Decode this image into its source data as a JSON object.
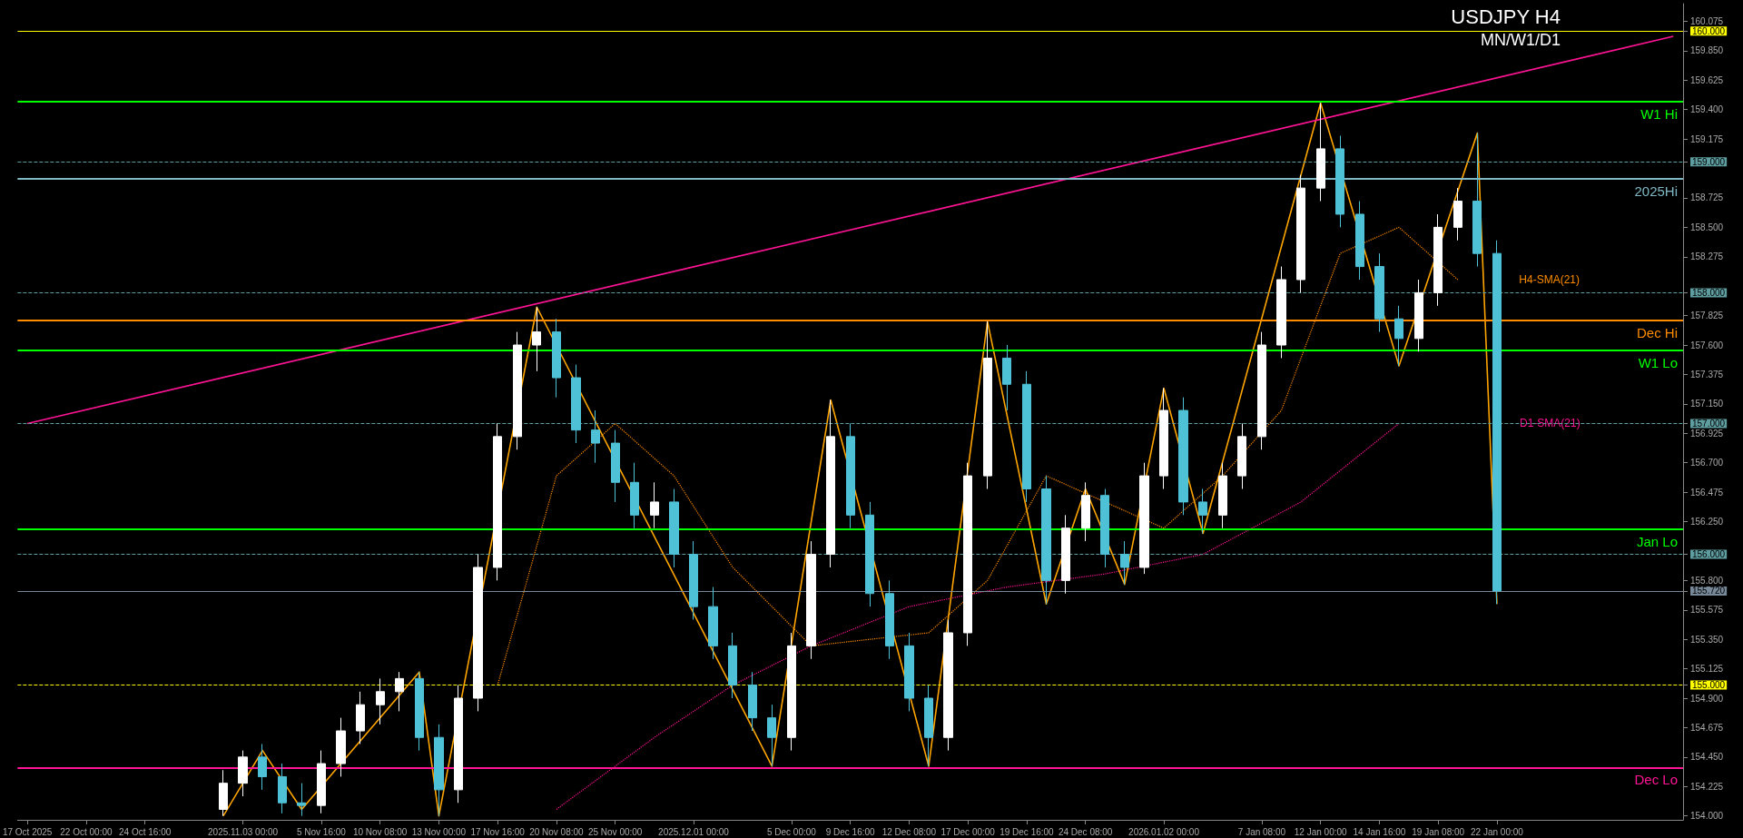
{
  "chart_data": {
    "type": "candlestick",
    "title": "USDJPY H4",
    "subtitle": "MN/W1/D1",
    "categories": [
      "17 Oct 2025",
      null,
      null,
      "22 Oct 00:00",
      null,
      null,
      "24 Oct 16:00",
      null,
      null,
      null,
      null,
      "2025.11.03 00:00",
      null,
      null,
      null,
      "5 Nov 16:00",
      null,
      null,
      "10 Nov 08:00",
      null,
      null,
      "13 Nov 00:00",
      null,
      null,
      "17 Nov 16:00",
      null,
      null,
      "20 Nov 08:00",
      null,
      null,
      "25 Nov 00:00",
      null,
      null,
      null,
      "2025.12.01 00:00",
      null,
      null,
      null,
      null,
      "5 Dec 00:00",
      null,
      null,
      "9 Dec 16:00",
      null,
      null,
      "12 Dec 08:00",
      null,
      null,
      "17 Dec 00:00",
      null,
      null,
      "19 Dec 16:00",
      null,
      null,
      "24 Dec 08:00",
      null,
      null,
      null,
      "2026.01.02 00:00",
      null,
      null,
      null,
      null,
      "7 Jan 08:00",
      null,
      null,
      "12 Jan 00:00",
      null,
      null,
      "14 Jan 16:00",
      null,
      null,
      "19 Jan 08:00",
      null,
      null,
      "22 Jan 00:00",
      null,
      null,
      null,
      null,
      null,
      null,
      null,
      null,
      null
    ],
    "ylim": [
      153.97,
      160.21
    ],
    "yticks": [
      {
        "value": 154.0,
        "label": "154.000"
      },
      {
        "value": 154.225,
        "label": "154.225"
      },
      {
        "value": 154.45,
        "label": "154.450"
      },
      {
        "value": 154.675,
        "label": "154.675"
      },
      {
        "value": 154.9,
        "label": "154.900"
      },
      {
        "value": 155.0,
        "label": "155.000"
      },
      {
        "value": 155.125,
        "label": "155.125"
      },
      {
        "value": 155.35,
        "label": "155.350"
      },
      {
        "value": 155.575,
        "label": "155.575"
      },
      {
        "value": 155.72,
        "label": "155.720"
      },
      {
        "value": 155.8,
        "label": "155.800"
      },
      {
        "value": 156.0,
        "label": "156.000"
      },
      {
        "value": 156.25,
        "label": "156.250"
      },
      {
        "value": 156.475,
        "label": "156.475"
      },
      {
        "value": 156.7,
        "label": "156.700"
      },
      {
        "value": 156.925,
        "label": "156.925"
      },
      {
        "value": 157.0,
        "label": "157.000"
      },
      {
        "value": 157.15,
        "label": "157.150"
      },
      {
        "value": 157.375,
        "label": "157.375"
      },
      {
        "value": 157.6,
        "label": "157.600"
      },
      {
        "value": 157.825,
        "label": "157.825"
      },
      {
        "value": 158.0,
        "label": "158.000"
      },
      {
        "value": 158.275,
        "label": "158.275"
      },
      {
        "value": 158.5,
        "label": "158.500"
      },
      {
        "value": 158.725,
        "label": "158.725"
      },
      {
        "value": 159.0,
        "label": "159.000"
      },
      {
        "value": 159.175,
        "label": "159.175"
      },
      {
        "value": 159.4,
        "label": "159.400"
      },
      {
        "value": 159.625,
        "label": "159.625"
      },
      {
        "value": 159.85,
        "label": "159.850"
      },
      {
        "value": 160.0,
        "label": "160.000"
      },
      {
        "value": 160.075,
        "label": "160.075"
      }
    ],
    "grid": false,
    "series": [
      {
        "ohlc": [
          null,
          null,
          null,
          null,
          null,
          null,
          null,
          null,
          null,
          null,
          [
            154.05,
            154.35,
            154.0,
            154.25
          ],
          [
            154.25,
            154.5,
            154.15,
            154.45
          ],
          [
            154.45,
            154.55,
            154.2,
            154.3
          ],
          [
            154.3,
            154.4,
            154.02,
            154.1
          ],
          [
            154.1,
            154.25,
            154.0,
            154.08
          ],
          [
            154.08,
            154.5,
            154.02,
            154.4
          ],
          [
            154.4,
            154.75,
            154.3,
            154.65
          ],
          [
            154.65,
            154.95,
            154.55,
            154.85
          ],
          [
            154.85,
            155.05,
            154.7,
            154.95
          ],
          [
            154.95,
            155.1,
            154.8,
            155.05
          ],
          [
            155.05,
            155.1,
            154.5,
            154.6
          ],
          [
            154.6,
            154.7,
            154.0,
            154.2
          ],
          [
            154.2,
            155.0,
            154.1,
            154.9
          ],
          [
            154.9,
            156.0,
            154.8,
            155.9
          ],
          [
            155.9,
            157.0,
            155.8,
            156.9
          ],
          [
            156.9,
            157.7,
            156.8,
            157.6
          ],
          [
            157.6,
            157.89,
            157.4,
            157.7
          ],
          [
            157.7,
            157.8,
            157.2,
            157.35
          ],
          [
            157.35,
            157.45,
            156.85,
            156.95
          ],
          [
            156.95,
            157.1,
            156.7,
            156.85
          ],
          [
            156.85,
            156.95,
            156.4,
            156.55
          ],
          [
            156.55,
            156.7,
            156.2,
            156.3
          ],
          [
            156.3,
            156.55,
            156.2,
            156.4
          ],
          [
            156.4,
            156.5,
            155.9,
            156.0
          ],
          [
            156.0,
            156.1,
            155.5,
            155.6
          ],
          [
            155.6,
            155.75,
            155.2,
            155.3
          ],
          [
            155.3,
            155.4,
            154.9,
            155.0
          ],
          [
            155.0,
            155.1,
            154.65,
            154.75
          ],
          [
            154.75,
            154.85,
            154.38,
            154.6
          ],
          [
            154.6,
            155.4,
            154.5,
            155.3
          ],
          [
            155.3,
            156.1,
            155.2,
            156.0
          ],
          [
            156.0,
            157.18,
            155.9,
            156.9
          ],
          [
            156.9,
            157.0,
            156.2,
            156.3
          ],
          [
            156.3,
            156.4,
            155.6,
            155.7
          ],
          [
            155.7,
            155.8,
            155.2,
            155.3
          ],
          [
            155.3,
            155.4,
            154.8,
            154.9
          ],
          [
            154.9,
            155.0,
            154.38,
            154.6
          ],
          [
            154.6,
            155.5,
            154.5,
            155.4
          ],
          [
            155.4,
            156.7,
            155.3,
            156.6
          ],
          [
            156.6,
            157.78,
            156.5,
            157.5
          ],
          [
            157.5,
            157.6,
            157.1,
            157.3
          ],
          [
            157.3,
            157.4,
            156.4,
            156.5
          ],
          [
            156.5,
            156.6,
            155.62,
            155.8
          ],
          [
            155.8,
            156.3,
            155.7,
            156.2
          ],
          [
            156.2,
            156.55,
            156.1,
            156.45
          ],
          [
            156.45,
            156.5,
            155.9,
            156.0
          ],
          [
            156.0,
            156.1,
            155.77,
            155.9
          ],
          [
            155.9,
            156.7,
            155.85,
            156.6
          ],
          [
            156.6,
            157.27,
            156.5,
            157.1
          ],
          [
            157.1,
            157.2,
            156.3,
            156.4
          ],
          [
            156.4,
            156.5,
            156.16,
            156.3
          ],
          [
            156.3,
            156.7,
            156.2,
            156.6
          ],
          [
            156.6,
            157.0,
            156.5,
            156.9
          ],
          [
            156.9,
            157.7,
            156.8,
            157.6
          ],
          [
            157.6,
            158.2,
            157.5,
            158.1
          ],
          [
            158.1,
            158.9,
            158.0,
            158.8
          ],
          [
            158.8,
            159.45,
            158.7,
            159.1
          ],
          [
            159.1,
            159.2,
            158.5,
            158.6
          ],
          [
            158.6,
            158.7,
            158.1,
            158.2
          ],
          [
            158.2,
            158.3,
            157.7,
            157.8
          ],
          [
            157.8,
            157.9,
            157.44,
            157.65
          ],
          [
            157.65,
            158.1,
            157.55,
            158.0
          ],
          [
            158.0,
            158.6,
            157.9,
            158.5
          ],
          [
            158.5,
            158.8,
            158.4,
            158.7
          ],
          [
            158.7,
            159.22,
            158.2,
            158.3
          ],
          [
            158.3,
            158.4,
            155.62,
            155.72
          ],
          null,
          null,
          null,
          null,
          null,
          null,
          null,
          null,
          null
        ],
        "colors": [
          null,
          null,
          null,
          null,
          null,
          null,
          null,
          null,
          null,
          null,
          "#ffffff",
          "#ffffff",
          "#4fc1d6",
          "#4fc1d6",
          "#4fc1d6",
          "#ffffff",
          "#ffffff",
          "#ffffff",
          "#ffffff",
          "#ffffff",
          "#4fc1d6",
          "#4fc1d6",
          "#ffffff",
          "#ffffff",
          "#ffffff",
          "#ffffff",
          "#ffffff",
          "#4fc1d6",
          "#4fc1d6",
          "#4fc1d6",
          "#4fc1d6",
          "#4fc1d6",
          "#ffffff",
          "#4fc1d6",
          "#4fc1d6",
          "#4fc1d6",
          "#4fc1d6",
          "#4fc1d6",
          "#4fc1d6",
          "#ffffff",
          "#ffffff",
          "#ffffff",
          "#4fc1d6",
          "#4fc1d6",
          "#4fc1d6",
          "#4fc1d6",
          "#4fc1d6",
          "#ffffff",
          "#ffffff",
          "#ffffff",
          "#4fc1d6",
          "#4fc1d6",
          "#4fc1d6",
          "#ffffff",
          "#ffffff",
          "#4fc1d6",
          "#4fc1d6",
          "#ffffff",
          "#ffffff",
          "#4fc1d6",
          "#4fc1d6",
          "#ffffff",
          "#ffffff",
          "#ffffff",
          "#ffffff",
          "#ffffff",
          "#ffffff",
          "#4fc1d6",
          "#4fc1d6",
          "#4fc1d6",
          "#4fc1d6",
          "#ffffff",
          "#ffffff",
          "#ffffff",
          "#4fc1d6",
          "#4fc1d6",
          null,
          null,
          null,
          null,
          null,
          null,
          null,
          null,
          null
        ]
      },
      {
        "type": "line",
        "name": "H4-SMA(21)",
        "color": "#ff8c00",
        "line_style": "dotted",
        "values": [
          null,
          null,
          null,
          null,
          null,
          null,
          null,
          null,
          null,
          null,
          null,
          null,
          null,
          null,
          null,
          null,
          null,
          null,
          null,
          null,
          null,
          null,
          null,
          null,
          155.0,
          null,
          null,
          156.6,
          null,
          null,
          157.0,
          null,
          null,
          156.6,
          null,
          null,
          155.9,
          null,
          null,
          null,
          155.3,
          null,
          null,
          null,
          null,
          null,
          155.4,
          null,
          null,
          155.8,
          null,
          null,
          156.6,
          null,
          null,
          null,
          null,
          null,
          156.2,
          null,
          null,
          156.6,
          null,
          null,
          157.1,
          null,
          null,
          158.3,
          null,
          null,
          158.5,
          null,
          null,
          158.1,
          null,
          null,
          null,
          null,
          null,
          null,
          null,
          null,
          null,
          null,
          null
        ]
      },
      {
        "type": "line",
        "name": "D1-SMA(21)",
        "color": "#ff1493",
        "line_style": "dotted",
        "values": [
          null,
          null,
          null,
          null,
          null,
          null,
          null,
          null,
          null,
          null,
          null,
          null,
          null,
          null,
          null,
          null,
          null,
          null,
          null,
          null,
          null,
          null,
          null,
          null,
          null,
          null,
          null,
          154.05,
          null,
          null,
          null,
          null,
          154.6,
          null,
          null,
          null,
          155.0,
          null,
          null,
          null,
          155.3,
          null,
          null,
          null,
          null,
          155.6,
          null,
          null,
          null,
          null,
          155.75,
          null,
          null,
          null,
          null,
          155.85,
          null,
          null,
          null,
          null,
          156.0,
          null,
          null,
          null,
          null,
          156.4,
          null,
          null,
          null,
          null,
          157.0,
          null,
          null,
          null,
          null,
          null,
          null,
          null,
          null,
          null,
          null,
          null,
          null,
          null,
          null
        ]
      },
      {
        "type": "line",
        "color": "#ffa500",
        "line_style": "solid",
        "values": [
          null,
          null,
          null,
          null,
          null,
          null,
          null,
          null,
          null,
          null,
          154.0,
          null,
          154.5,
          null,
          154.05,
          null,
          null,
          null,
          null,
          null,
          155.1,
          154.0,
          null,
          null,
          null,
          null,
          157.89,
          null,
          null,
          null,
          null,
          null,
          null,
          null,
          null,
          null,
          null,
          null,
          154.38,
          null,
          null,
          157.18,
          null,
          null,
          null,
          null,
          154.38,
          null,
          null,
          157.78,
          null,
          null,
          155.62,
          null,
          156.5,
          null,
          155.77,
          null,
          157.27,
          null,
          156.16,
          null,
          null,
          null,
          null,
          null,
          159.45,
          null,
          null,
          null,
          157.44,
          null,
          null,
          null,
          159.22,
          155.62,
          null,
          null,
          null,
          null,
          null,
          null,
          null,
          null,
          null
        ]
      },
      {
        "type": "line",
        "color": "#ff1493",
        "line_style": "solid",
        "values": [
          157.0,
          null,
          null,
          null,
          null,
          null,
          null,
          null,
          null,
          null,
          null,
          null,
          null,
          null,
          null,
          null,
          null,
          null,
          null,
          null,
          null,
          null,
          null,
          null,
          null,
          null,
          null,
          null,
          null,
          null,
          null,
          null,
          null,
          null,
          null,
          null,
          null,
          null,
          null,
          null,
          null,
          null,
          null,
          null,
          null,
          null,
          null,
          null,
          null,
          null,
          null,
          null,
          null,
          null,
          null,
          null,
          null,
          null,
          null,
          null,
          null,
          null,
          null,
          null,
          null,
          null,
          null,
          null,
          null,
          null,
          null,
          null,
          null,
          null,
          null,
          null,
          null,
          null,
          null,
          null,
          null,
          null,
          null,
          null,
          159.96
        ]
      }
    ],
    "ref_lines": [
      {
        "axis": "y",
        "value": 160.0,
        "color": "#ffff00",
        "line_style": "solid"
      },
      {
        "axis": "y",
        "value": 159.0,
        "color": "#5f9ea0",
        "line_style": "dashed"
      },
      {
        "axis": "y",
        "value": 158.0,
        "color": "#5f9ea0",
        "line_style": "dashed"
      },
      {
        "axis": "y",
        "value": 157.0,
        "color": "#5f9ea0",
        "line_style": "dashed"
      },
      {
        "axis": "y",
        "value": 156.0,
        "color": "#5f9ea0",
        "line_style": "dashed"
      },
      {
        "axis": "y",
        "value": 155.72,
        "color": "#778899",
        "line_style": "solid"
      },
      {
        "axis": "y",
        "value": 155.0,
        "color": "#ffff00",
        "line_style": "dashed"
      },
      {
        "axis": "y",
        "value": 159.46,
        "label": "W1 Hi",
        "color": "#00ff00",
        "line_style": "solid"
      },
      {
        "axis": "y",
        "value": 158.87,
        "label": "2025Hi",
        "color": "#7fb8c4",
        "line_style": "solid"
      },
      {
        "axis": "y",
        "value": 157.79,
        "label": "Dec Hi",
        "color": "#ff8c00",
        "line_style": "solid"
      },
      {
        "axis": "y",
        "value": 157.56,
        "label": "W1 Lo",
        "color": "#00ff00",
        "line_style": "solid"
      },
      {
        "axis": "y",
        "value": 156.19,
        "label": "Jan Lo",
        "color": "#00ff00",
        "line_style": "solid"
      },
      {
        "axis": "y",
        "value": 154.37,
        "label": "Dec Lo",
        "color": "#ff1493",
        "line_style": "solid"
      }
    ]
  }
}
